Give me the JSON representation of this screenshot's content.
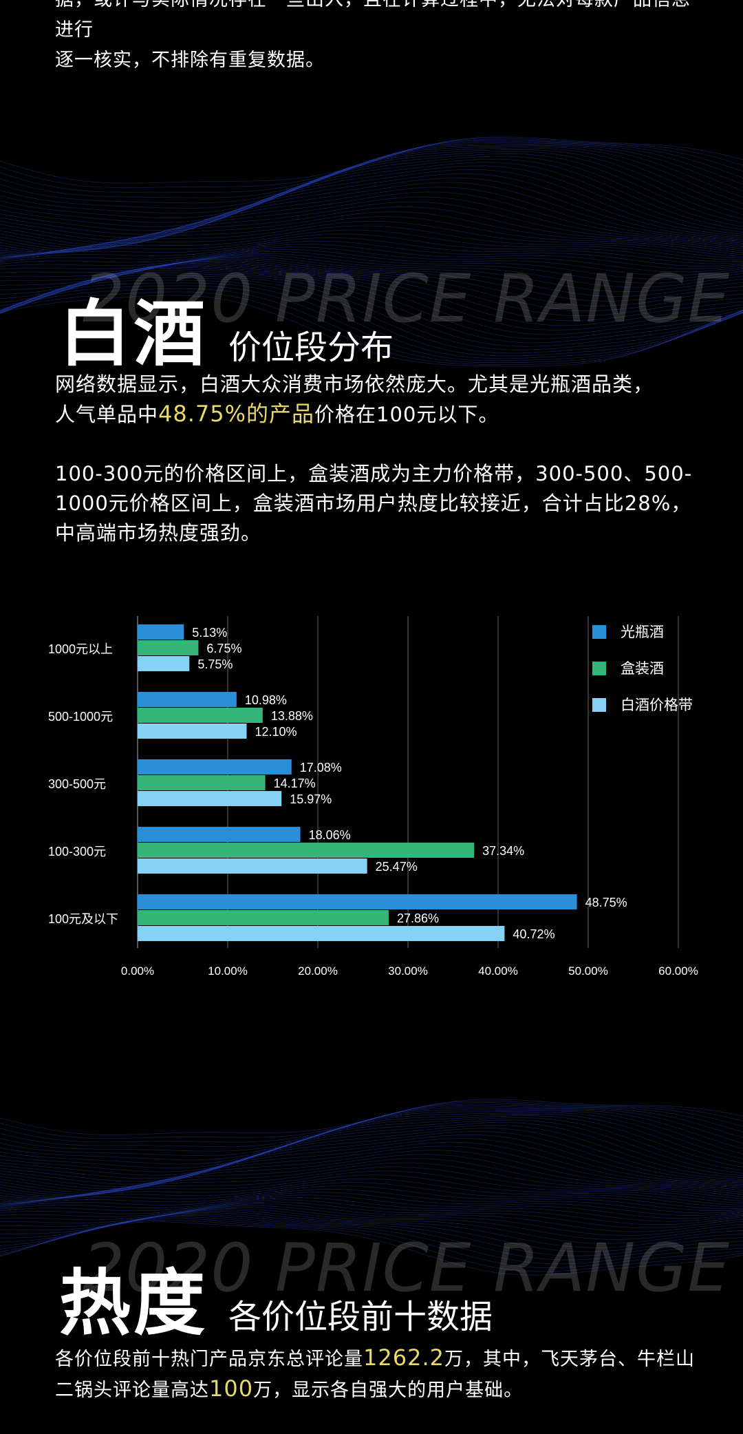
{
  "top_text": {
    "line1": "据，或许与实际情况存在一些出入，且在计算过程中，无法对每款产品信息进行",
    "line2": "逐一核实，不排除有重复数据。"
  },
  "section1": {
    "watermark": "2020 PRICE RANGE",
    "title": "白酒",
    "subtitle": "价位段分布",
    "para1_a": "网络数据显示，白酒大众消费市场依然庞大。尤其是光瓶酒品类，",
    "para1_b": "人气单品中",
    "para1_highlight": "48.75%的产品",
    "para1_c": "价格在100元以下。",
    "para2": "100-300元的价格区间上，盒装酒成为主力价格带，300-500、500-1000元价格区间上，盒装酒市场用户热度比较接近，合计占比28%，中高端市场热度强劲。"
  },
  "section2": {
    "watermark": "2020 PRICE RANGE",
    "title": "热度",
    "subtitle": "各价位段前十数据",
    "para_a": "各价位段前十热门产品京东总评论量",
    "para_hl1": "1262.2",
    "para_b": "万，其中，飞天茅台、牛栏山二锅头评论量高达",
    "para_hl2": "100",
    "para_c": "万，显示各自强大的用户基础。"
  },
  "colors": {
    "series1": "#2a8fd6",
    "series2": "#34b57a",
    "series3": "#86d2f4",
    "highlight": "#e9d96a"
  },
  "chart_data": {
    "type": "bar",
    "orientation": "horizontal",
    "categories": [
      "1000元以上",
      "500-1000元",
      "300-500元",
      "100-300元",
      "100元及以下"
    ],
    "series": [
      {
        "name": "光瓶酒",
        "values": [
          5.13,
          10.98,
          17.08,
          18.06,
          48.75
        ]
      },
      {
        "name": "盒装酒",
        "values": [
          6.75,
          13.88,
          14.17,
          37.34,
          27.86
        ]
      },
      {
        "name": "白酒价格带",
        "values": [
          5.75,
          12.1,
          15.97,
          25.47,
          40.72
        ]
      }
    ],
    "xlim": [
      0,
      60
    ],
    "xticks": [
      "0.00%",
      "10.00%",
      "20.00%",
      "30.00%",
      "40.00%",
      "50.00%",
      "60.00%"
    ],
    "value_suffix": "%",
    "grid": "vertical",
    "legend": "top-right"
  }
}
